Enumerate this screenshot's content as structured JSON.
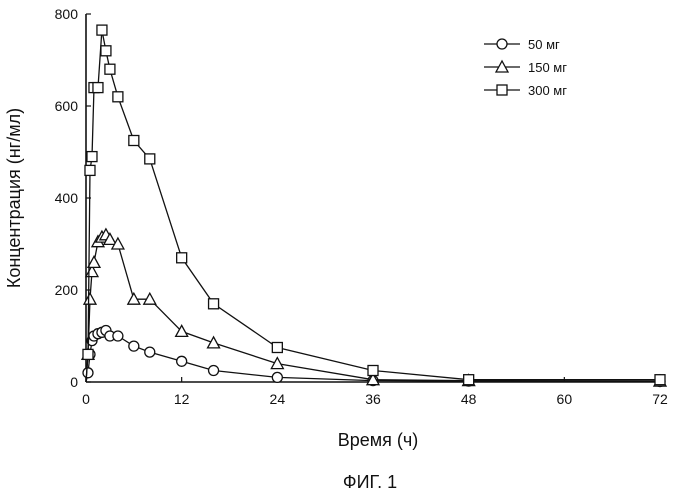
{
  "figure_caption": "ФИГ. 1",
  "chart_data": {
    "type": "line",
    "title": "",
    "xlabel": "Время (ч)",
    "ylabel": "Концентрация (нг/мл)",
    "xlim": [
      0,
      72
    ],
    "ylim": [
      0,
      800
    ],
    "xticks": [
      0,
      12,
      24,
      36,
      48,
      60,
      72
    ],
    "yticks": [
      0,
      200,
      400,
      600,
      800
    ],
    "grid": false,
    "legend_position": "top-right",
    "series": [
      {
        "name": "50 мг",
        "marker": "circle",
        "points": [
          [
            0,
            0
          ],
          [
            0.25,
            20
          ],
          [
            0.5,
            60
          ],
          [
            0.75,
            90
          ],
          [
            1,
            100
          ],
          [
            1.5,
            105
          ],
          [
            2,
            108
          ],
          [
            2.5,
            112
          ],
          [
            3,
            100
          ],
          [
            4,
            100
          ],
          [
            6,
            78
          ],
          [
            8,
            65
          ],
          [
            12,
            45
          ],
          [
            16,
            25
          ],
          [
            24,
            10
          ],
          [
            36,
            3
          ],
          [
            48,
            2
          ],
          [
            72,
            1
          ]
        ]
      },
      {
        "name": "150 мг",
        "marker": "triangle",
        "points": [
          [
            0,
            0
          ],
          [
            0.25,
            60
          ],
          [
            0.5,
            180
          ],
          [
            0.75,
            240
          ],
          [
            1,
            260
          ],
          [
            1.5,
            305
          ],
          [
            2,
            315
          ],
          [
            2.5,
            320
          ],
          [
            3,
            310
          ],
          [
            4,
            300
          ],
          [
            6,
            180
          ],
          [
            8,
            180
          ],
          [
            12,
            110
          ],
          [
            16,
            85
          ],
          [
            24,
            40
          ],
          [
            36,
            5
          ],
          [
            48,
            3
          ],
          [
            72,
            2
          ]
        ]
      },
      {
        "name": "300 мг",
        "marker": "square",
        "points": [
          [
            0,
            0
          ],
          [
            0.25,
            60
          ],
          [
            0.5,
            460
          ],
          [
            0.75,
            490
          ],
          [
            1,
            640
          ],
          [
            1.5,
            640
          ],
          [
            2,
            765
          ],
          [
            2.5,
            720
          ],
          [
            3,
            680
          ],
          [
            4,
            620
          ],
          [
            6,
            525
          ],
          [
            8,
            485
          ],
          [
            12,
            270
          ],
          [
            16,
            170
          ],
          [
            24,
            75
          ],
          [
            36,
            25
          ],
          [
            48,
            5
          ],
          [
            72,
            5
          ]
        ]
      }
    ]
  }
}
